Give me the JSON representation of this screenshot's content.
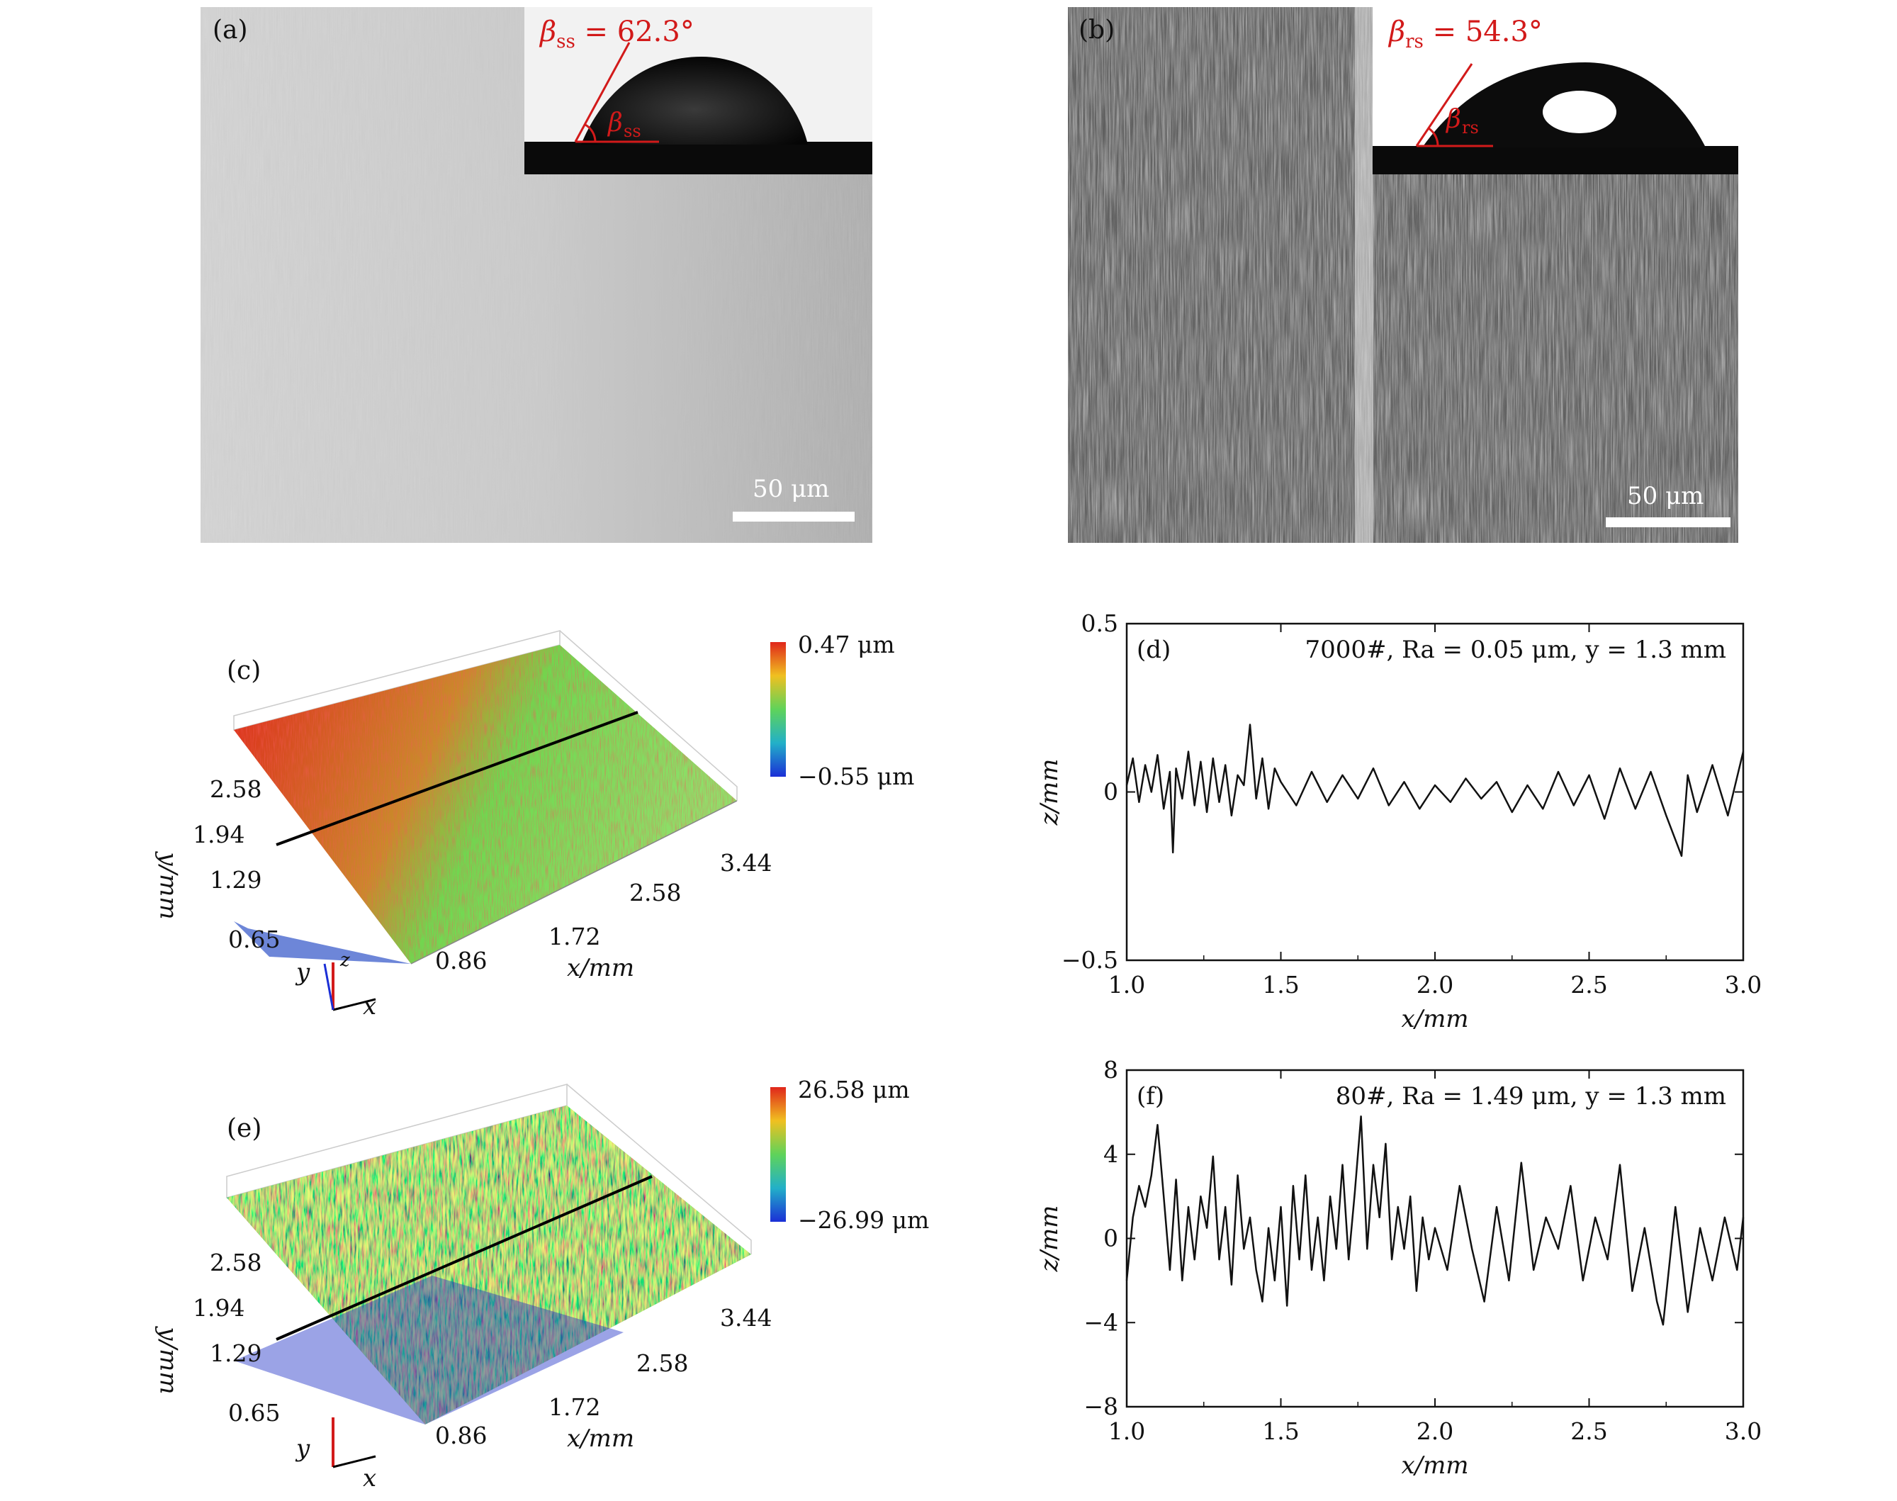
{
  "panel_a": {
    "label": "(a)",
    "angle_label": "β_ss = 62.3°",
    "angle_symbol": "β",
    "angle_sub": "ss",
    "angle_value": " = 62.3°",
    "scale_text": "50 μm"
  },
  "panel_b": {
    "label": "(b)",
    "angle_symbol": "β",
    "angle_sub": "rs",
    "angle_value": " = 54.3°",
    "scale_text": "50 μm"
  },
  "panel_c": {
    "label": "(c)",
    "colorbar_max": "0.47 μm",
    "colorbar_min": "−0.55 μm",
    "x_ticks": [
      "0.86",
      "1.72",
      "2.58",
      "3.44"
    ],
    "y_ticks": [
      "0.65",
      "1.29",
      "1.94",
      "2.58"
    ],
    "xlabel": "x/mm",
    "ylabel": "y/mm",
    "axis_x": "x",
    "axis_y": "y",
    "axis_z": "z"
  },
  "panel_e": {
    "label": "(e)",
    "colorbar_max": "26.58 μm",
    "colorbar_min": "−26.99 μm",
    "x_ticks": [
      "0.86",
      "1.72",
      "2.58",
      "3.44"
    ],
    "y_ticks": [
      "0.65",
      "1.29",
      "1.94",
      "2.58"
    ],
    "xlabel": "x/mm",
    "ylabel": "y/mm",
    "axis_x": "x",
    "axis_y": "y"
  },
  "colors": {
    "red_annotation": "#d21a1a",
    "surface_high": "#e0261b",
    "surface_mid": "#5fd35a",
    "surface_low": "#1b2fd6"
  },
  "chart_data": [
    {
      "id": "d",
      "type": "line",
      "panel_label": "(d)",
      "annotation": "7000#, Ra = 0.05 μm, y = 1.3 mm",
      "xlabel": "x/mm",
      "ylabel": "z/mm",
      "xlim": [
        1.0,
        3.0
      ],
      "ylim": [
        -0.5,
        0.5
      ],
      "x_ticks": [
        "1.0",
        "1.5",
        "2.0",
        "2.5",
        "3.0"
      ],
      "y_ticks": [
        "−0.5",
        "0",
        "0.5"
      ],
      "x_tick_values": [
        1.0,
        1.5,
        2.0,
        2.5,
        3.0
      ],
      "y_tick_values": [
        -0.5,
        0,
        0.5
      ],
      "series": [
        {
          "x": [
            1.0,
            1.02,
            1.04,
            1.06,
            1.08,
            1.1,
            1.12,
            1.14,
            1.15,
            1.16,
            1.18,
            1.2,
            1.22,
            1.24,
            1.26,
            1.28,
            1.3,
            1.32,
            1.34,
            1.36,
            1.38,
            1.4,
            1.42,
            1.44,
            1.46,
            1.48,
            1.5,
            1.55,
            1.6,
            1.65,
            1.7,
            1.75,
            1.8,
            1.85,
            1.9,
            1.95,
            2.0,
            2.05,
            2.1,
            2.15,
            2.2,
            2.25,
            2.3,
            2.35,
            2.4,
            2.45,
            2.5,
            2.55,
            2.6,
            2.65,
            2.7,
            2.75,
            2.8,
            2.82,
            2.85,
            2.9,
            2.95,
            3.0
          ],
          "y": [
            0.02,
            0.1,
            -0.03,
            0.08,
            0.0,
            0.11,
            -0.05,
            0.06,
            -0.18,
            0.07,
            -0.02,
            0.12,
            -0.04,
            0.09,
            -0.06,
            0.1,
            -0.03,
            0.08,
            -0.07,
            0.05,
            0.02,
            0.2,
            -0.02,
            0.1,
            -0.05,
            0.07,
            0.03,
            -0.04,
            0.06,
            -0.03,
            0.05,
            -0.02,
            0.07,
            -0.04,
            0.03,
            -0.05,
            0.02,
            -0.03,
            0.04,
            -0.02,
            0.03,
            -0.06,
            0.02,
            -0.05,
            0.06,
            -0.04,
            0.05,
            -0.08,
            0.07,
            -0.05,
            0.06,
            -0.07,
            -0.19,
            0.05,
            -0.06,
            0.08,
            -0.07,
            0.12
          ]
        }
      ]
    },
    {
      "id": "f",
      "type": "line",
      "panel_label": "(f)",
      "annotation": "80#, Ra = 1.49 μm, y = 1.3 mm",
      "xlabel": "x/mm",
      "ylabel": "z/mm",
      "xlim": [
        1.0,
        3.0
      ],
      "ylim": [
        -8,
        8
      ],
      "x_ticks": [
        "1.0",
        "1.5",
        "2.0",
        "2.5",
        "3.0"
      ],
      "y_ticks": [
        "−8",
        "−4",
        "0",
        "4",
        "8"
      ],
      "x_tick_values": [
        1.0,
        1.5,
        2.0,
        2.5,
        3.0
      ],
      "y_tick_values": [
        -8,
        -4,
        0,
        4,
        8
      ],
      "series": [
        {
          "x": [
            1.0,
            1.02,
            1.04,
            1.06,
            1.08,
            1.1,
            1.12,
            1.14,
            1.16,
            1.18,
            1.2,
            1.22,
            1.24,
            1.26,
            1.28,
            1.3,
            1.32,
            1.34,
            1.36,
            1.38,
            1.4,
            1.42,
            1.44,
            1.46,
            1.48,
            1.5,
            1.52,
            1.54,
            1.56,
            1.58,
            1.6,
            1.62,
            1.64,
            1.66,
            1.68,
            1.7,
            1.72,
            1.74,
            1.76,
            1.78,
            1.8,
            1.82,
            1.84,
            1.86,
            1.88,
            1.9,
            1.92,
            1.94,
            1.96,
            1.98,
            2.0,
            2.04,
            2.08,
            2.12,
            2.16,
            2.2,
            2.24,
            2.28,
            2.32,
            2.36,
            2.4,
            2.44,
            2.48,
            2.52,
            2.56,
            2.6,
            2.64,
            2.68,
            2.72,
            2.74,
            2.78,
            2.82,
            2.86,
            2.9,
            2.94,
            2.98,
            3.0
          ],
          "y": [
            -2.0,
            1.0,
            2.5,
            1.5,
            3.0,
            5.4,
            2.0,
            -1.5,
            2.8,
            -2.0,
            1.5,
            -1.0,
            2.0,
            0.5,
            3.9,
            -1.0,
            1.5,
            -2.2,
            3.0,
            -0.5,
            1.0,
            -1.5,
            -3.0,
            0.5,
            -2.0,
            1.5,
            -3.2,
            2.5,
            -1.0,
            3.0,
            -1.5,
            1.0,
            -2.0,
            2.0,
            -0.5,
            3.5,
            -1.0,
            2.2,
            5.8,
            -0.5,
            3.5,
            1.0,
            4.5,
            -1.0,
            1.5,
            -0.5,
            2.0,
            -2.5,
            1.0,
            -1.0,
            0.5,
            -1.5,
            2.5,
            -0.5,
            -3.0,
            1.5,
            -2.0,
            3.6,
            -1.5,
            1.0,
            -0.5,
            2.5,
            -2.0,
            1.0,
            -1.0,
            3.5,
            -2.5,
            0.5,
            -3.0,
            -4.1,
            1.5,
            -3.5,
            0.5,
            -2.0,
            1.0,
            -1.5,
            1.0
          ]
        }
      ]
    }
  ]
}
